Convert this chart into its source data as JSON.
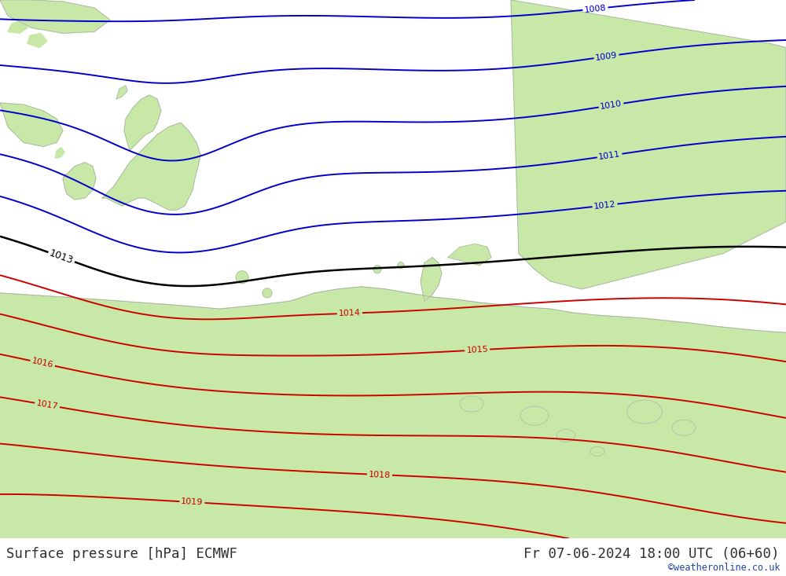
{
  "title_left": "Surface pressure [hPa] ECMWF",
  "title_right": "Fr 07-06-2024 18:00 UTC (06+60)",
  "watermark": "©weatheronline.co.uk",
  "bg_color": "#cdd5e0",
  "land_green": "#c8e8a8",
  "coast_color": "#aaaaaa",
  "text_color": "#303030",
  "watermark_color": "#2244aa",
  "blue_color": "#0000cc",
  "black_color": "#000000",
  "red_color": "#cc0000",
  "pressure_levels_blue": [
    1008,
    1009,
    1010,
    1011,
    1012
  ],
  "pressure_levels_black": [
    1013
  ],
  "pressure_levels_red": [
    1014,
    1015,
    1016,
    1017,
    1018,
    1019
  ],
  "fig_width": 10.0,
  "fig_height": 7.33,
  "dpi": 100
}
